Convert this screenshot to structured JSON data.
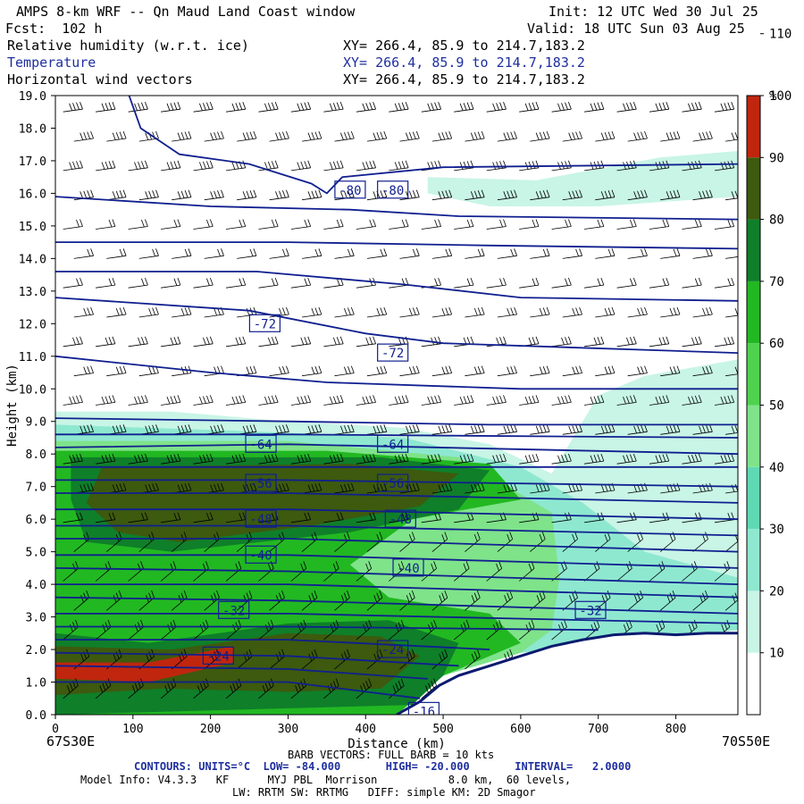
{
  "header": {
    "title": "AMPS 8-km WRF -- Qn Maud Land Coast window",
    "init": "Init: 12 UTC Wed 30 Jul 25",
    "fcst": "Fcst:  102 h",
    "valid": "Valid: 18 UTC Sun 03 Aug 25",
    "fields": [
      {
        "name": "Relative humidity (w.r.t. ice)",
        "xy": "XY= 266.4, 85.9 to 214.7,183.2",
        "color": "#000000"
      },
      {
        "name": "Temperature",
        "xy": "XY= 266.4, 85.9 to 214.7,183.2",
        "color": "#1f2f9f"
      },
      {
        "name": "Horizontal wind vectors",
        "xy": "XY= 266.4, 85.9 to 214.7,183.2",
        "color": "#000000"
      }
    ]
  },
  "footer": {
    "barb": "BARB VECTORS: FULL BARB = 10 kts",
    "contours": "CONTOURS: UNITS=°C  LOW= -84.000       HIGH= -20.000       INTERVAL=   2.0000",
    "model1": "Model Info: V4.3.3   KF      MYJ PBL  Morrison           8.0 km,  60 levels,",
    "model2": "LW: RRTM SW: RRTMG   DIFF: simple KM: 2D Smagor"
  },
  "chart_data": {
    "type": "heatmap",
    "xlabel": "Distance (km)",
    "ylabel": "Height (km)",
    "xlim": [
      0,
      880
    ],
    "ylim": [
      0,
      19
    ],
    "x_ticks": [
      0,
      100,
      200,
      300,
      400,
      500,
      600,
      700,
      800
    ],
    "y_ticks": [
      "0.0",
      "1.0",
      "2.0",
      "3.0",
      "4.0",
      "5.0",
      "6.0",
      "7.0",
      "8.0",
      "9.0",
      "10.0",
      "11.0",
      "12.0",
      "13.0",
      "14.0",
      "15.0",
      "16.0",
      "17.0",
      "18.0",
      "19.0"
    ],
    "left_endpoint": "67S30E",
    "right_endpoint": "70S50E",
    "colorbar": {
      "unit": "%",
      "ticks": [
        10,
        20,
        30,
        40,
        50,
        60,
        70,
        80,
        90,
        100,
        110
      ],
      "bins": [
        {
          "from": 0,
          "to": 30,
          "color": "#ffffff"
        },
        {
          "from": 30,
          "to": 40,
          "color": "#c8f5e6"
        },
        {
          "from": 40,
          "to": 50,
          "color": "#8ee8d0"
        },
        {
          "from": 50,
          "to": 60,
          "color": "#5fd9b4"
        },
        {
          "from": 60,
          "to": 70,
          "color": "#7fe38a"
        },
        {
          "from": 70,
          "to": 80,
          "color": "#4fd34f"
        },
        {
          "from": 80,
          "to": 90,
          "color": "#22b822"
        },
        {
          "from": 90,
          "to": 100,
          "color": "#0f7f2a"
        },
        {
          "from": 100,
          "to": 110,
          "color": "#3d5a0e"
        },
        {
          "from": 110,
          "to": 120,
          "color": "#c0260e"
        }
      ]
    },
    "contour_labels": [
      {
        "text": "-80",
        "x": 380,
        "y": 16.1
      },
      {
        "text": "-80",
        "x": 435,
        "y": 16.1
      },
      {
        "text": "-72",
        "x": 270,
        "y": 12.0
      },
      {
        "text": "-72",
        "x": 435,
        "y": 11.1
      },
      {
        "text": "-64",
        "x": 265,
        "y": 8.3
      },
      {
        "text": "-64",
        "x": 435,
        "y": 8.3
      },
      {
        "text": "-56",
        "x": 265,
        "y": 7.1
      },
      {
        "text": "-56",
        "x": 435,
        "y": 7.1
      },
      {
        "text": "-48",
        "x": 265,
        "y": 6.0
      },
      {
        "text": "-48",
        "x": 445,
        "y": 6.0
      },
      {
        "text": "-40",
        "x": 265,
        "y": 4.9
      },
      {
        "text": "-40",
        "x": 455,
        "y": 4.5
      },
      {
        "text": "-32",
        "x": 230,
        "y": 3.2
      },
      {
        "text": "-32",
        "x": 690,
        "y": 3.2
      },
      {
        "text": "-24",
        "x": 210,
        "y": 1.8
      },
      {
        "text": "-24",
        "x": 435,
        "y": 2.0
      },
      {
        "text": "-16",
        "x": 475,
        "y": 0.1
      }
    ],
    "terrain": [
      [
        440,
        0
      ],
      [
        470,
        0.4
      ],
      [
        495,
        0.9
      ],
      [
        520,
        1.2
      ],
      [
        560,
        1.5
      ],
      [
        600,
        1.8
      ],
      [
        640,
        2.1
      ],
      [
        680,
        2.3
      ],
      [
        720,
        2.45
      ],
      [
        760,
        2.5
      ],
      [
        800,
        2.45
      ],
      [
        840,
        2.5
      ],
      [
        880,
        2.5
      ]
    ],
    "rh_regions": [
      {
        "bin": 30,
        "poly": [
          [
            0,
            9.3
          ],
          [
            150,
            9.3
          ],
          [
            300,
            9.0
          ],
          [
            450,
            8.8
          ],
          [
            560,
            8.3
          ],
          [
            640,
            7.4
          ],
          [
            700,
            9.8
          ],
          [
            760,
            10.4
          ],
          [
            880,
            10.9
          ],
          [
            880,
            2.6
          ],
          [
            600,
            1.9
          ],
          [
            500,
            1.2
          ],
          [
            440,
            0
          ],
          [
            0,
            0
          ]
        ]
      },
      {
        "bin": 30,
        "poly": [
          [
            480,
            16.5
          ],
          [
            620,
            16.4
          ],
          [
            780,
            17.1
          ],
          [
            880,
            17.3
          ],
          [
            880,
            15.9
          ],
          [
            700,
            15.6
          ],
          [
            560,
            15.6
          ],
          [
            480,
            16.0
          ]
        ]
      },
      {
        "bin": 40,
        "poly": [
          [
            0,
            8.9
          ],
          [
            250,
            8.7
          ],
          [
            450,
            8.5
          ],
          [
            600,
            7.6
          ],
          [
            680,
            6.5
          ],
          [
            760,
            5.0
          ],
          [
            880,
            4.2
          ],
          [
            880,
            2.6
          ],
          [
            600,
            1.9
          ],
          [
            500,
            1.2
          ],
          [
            440,
            0
          ],
          [
            0,
            0
          ]
        ]
      },
      {
        "bin": 60,
        "poly": [
          [
            0,
            8.4
          ],
          [
            300,
            8.4
          ],
          [
            520,
            7.9
          ],
          [
            640,
            6.2
          ],
          [
            650,
            4.2
          ],
          [
            640,
            2.6
          ],
          [
            600,
            1.9
          ],
          [
            500,
            1.2
          ],
          [
            440,
            0
          ],
          [
            0,
            0
          ]
        ]
      },
      {
        "bin": 80,
        "poly": [
          [
            0,
            8.1
          ],
          [
            350,
            8.1
          ],
          [
            560,
            7.7
          ],
          [
            600,
            6.6
          ],
          [
            460,
            6.0
          ],
          [
            380,
            4.6
          ],
          [
            430,
            3.6
          ],
          [
            560,
            3.1
          ],
          [
            600,
            2.2
          ],
          [
            500,
            1.2
          ],
          [
            440,
            0
          ],
          [
            0,
            0
          ]
        ]
      },
      {
        "bin": 90,
        "poly": [
          [
            20,
            7.9
          ],
          [
            420,
            7.9
          ],
          [
            560,
            7.5
          ],
          [
            520,
            6.3
          ],
          [
            380,
            5.6
          ],
          [
            150,
            5.0
          ],
          [
            40,
            5.3
          ],
          [
            20,
            6.6
          ]
        ]
      },
      {
        "bin": 100,
        "poly": [
          [
            60,
            7.6
          ],
          [
            380,
            7.7
          ],
          [
            520,
            7.4
          ],
          [
            470,
            6.4
          ],
          [
            330,
            5.8
          ],
          [
            160,
            5.3
          ],
          [
            80,
            5.6
          ],
          [
            40,
            6.5
          ]
        ]
      },
      {
        "bin": 90,
        "poly": [
          [
            0,
            2.5
          ],
          [
            120,
            2.2
          ],
          [
            300,
            2.8
          ],
          [
            430,
            2.9
          ],
          [
            520,
            2.2
          ],
          [
            500,
            1.2
          ],
          [
            460,
            0.3
          ],
          [
            0,
            0
          ]
        ]
      },
      {
        "bin": 100,
        "poly": [
          [
            0,
            2.1
          ],
          [
            150,
            2.0
          ],
          [
            300,
            2.5
          ],
          [
            420,
            2.4
          ],
          [
            470,
            1.8
          ],
          [
            420,
            0.8
          ],
          [
            300,
            0.7
          ],
          [
            140,
            0.8
          ],
          [
            0,
            0.6
          ]
        ]
      },
      {
        "bin": 110,
        "poly": [
          [
            0,
            1.6
          ],
          [
            120,
            1.6
          ],
          [
            230,
            2.1
          ],
          [
            230,
            1.6
          ],
          [
            120,
            1.0
          ],
          [
            0,
            1.1
          ]
        ]
      }
    ],
    "isotherms": [
      [
        [
          95,
          19
        ],
        [
          110,
          18.0
        ],
        [
          160,
          17.2
        ],
        [
          250,
          16.9
        ],
        [
          330,
          16.3
        ],
        [
          350,
          16.0
        ],
        [
          370,
          16.5
        ],
        [
          500,
          16.8
        ],
        [
          880,
          16.9
        ]
      ],
      [
        [
          0,
          15.9
        ],
        [
          200,
          15.6
        ],
        [
          380,
          15.5
        ],
        [
          520,
          15.3
        ],
        [
          880,
          15.2
        ]
      ],
      [
        [
          0,
          14.5
        ],
        [
          300,
          14.5
        ],
        [
          560,
          14.4
        ],
        [
          880,
          14.3
        ]
      ],
      [
        [
          0,
          13.6
        ],
        [
          260,
          13.6
        ],
        [
          450,
          13.2
        ],
        [
          600,
          12.8
        ],
        [
          880,
          12.7
        ]
      ],
      [
        [
          0,
          12.8
        ],
        [
          250,
          12.4
        ],
        [
          400,
          11.7
        ],
        [
          500,
          11.4
        ],
        [
          880,
          11.1
        ]
      ],
      [
        [
          0,
          11.0
        ],
        [
          200,
          10.5
        ],
        [
          350,
          10.2
        ],
        [
          600,
          10.0
        ],
        [
          880,
          10.0
        ]
      ],
      [
        [
          0,
          9.1
        ],
        [
          300,
          9.0
        ],
        [
          560,
          8.9
        ],
        [
          880,
          8.9
        ]
      ],
      [
        [
          0,
          8.6
        ],
        [
          300,
          8.6
        ],
        [
          880,
          8.5
        ]
      ],
      [
        [
          0,
          8.2
        ],
        [
          300,
          8.3
        ],
        [
          880,
          8.0
        ]
      ],
      [
        [
          0,
          7.6
        ],
        [
          300,
          7.6
        ],
        [
          880,
          7.6
        ]
      ],
      [
        [
          0,
          7.2
        ],
        [
          300,
          7.2
        ],
        [
          880,
          7.0
        ]
      ],
      [
        [
          0,
          6.8
        ],
        [
          300,
          6.8
        ],
        [
          880,
          6.5
        ]
      ],
      [
        [
          0,
          6.3
        ],
        [
          300,
          6.3
        ],
        [
          880,
          6.0
        ]
      ],
      [
        [
          0,
          5.8
        ],
        [
          300,
          5.8
        ],
        [
          880,
          5.5
        ]
      ],
      [
        [
          0,
          5.4
        ],
        [
          300,
          5.4
        ],
        [
          880,
          5.0
        ]
      ],
      [
        [
          0,
          4.9
        ],
        [
          300,
          4.9
        ],
        [
          880,
          4.5
        ]
      ],
      [
        [
          0,
          4.5
        ],
        [
          300,
          4.4
        ],
        [
          880,
          4.0
        ]
      ],
      [
        [
          0,
          4.0
        ],
        [
          300,
          4.0
        ],
        [
          880,
          3.6
        ]
      ],
      [
        [
          0,
          3.6
        ],
        [
          300,
          3.5
        ],
        [
          880,
          3.1
        ]
      ],
      [
        [
          0,
          3.1
        ],
        [
          300,
          3.1
        ],
        [
          880,
          2.8
        ]
      ],
      [
        [
          0,
          2.7
        ],
        [
          300,
          2.7
        ],
        [
          700,
          2.6
        ]
      ],
      [
        [
          0,
          2.3
        ],
        [
          300,
          2.3
        ],
        [
          560,
          2.0
        ]
      ],
      [
        [
          0,
          1.9
        ],
        [
          300,
          1.8
        ],
        [
          520,
          1.5
        ]
      ],
      [
        [
          0,
          1.5
        ],
        [
          300,
          1.4
        ],
        [
          480,
          1.1
        ]
      ],
      [
        [
          0,
          1.0
        ],
        [
          300,
          1.0
        ],
        [
          470,
          0.5
        ]
      ]
    ],
    "grid": false,
    "legend": "right"
  }
}
